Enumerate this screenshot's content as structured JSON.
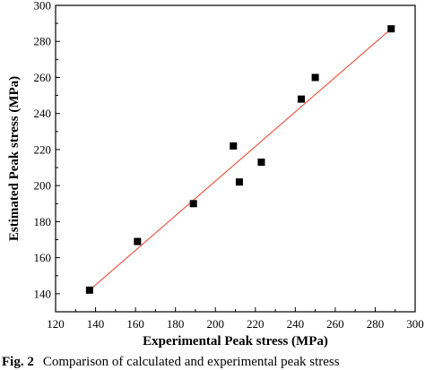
{
  "chart_data": {
    "type": "scatter",
    "xlabel": "Experimental Peak stress (MPa)",
    "ylabel": "Estimated Peak stress (MPa)",
    "xlim": [
      120,
      300
    ],
    "ylim": [
      130,
      300
    ],
    "xticks": [
      120,
      140,
      160,
      180,
      200,
      220,
      240,
      260,
      280,
      300
    ],
    "yticks": [
      140,
      160,
      180,
      200,
      220,
      240,
      260,
      280,
      300
    ],
    "grid": false,
    "series": [
      {
        "marker": "square",
        "color": "#000000",
        "x": [
          137,
          161,
          189,
          209,
          212,
          223,
          243,
          250,
          288
        ],
        "y": [
          142,
          169,
          190,
          222,
          202,
          213,
          248,
          260,
          287
        ]
      }
    ],
    "fit_line": {
      "color": "#e8402a",
      "x": [
        137,
        288
      ],
      "y": [
        142,
        287
      ]
    }
  },
  "caption": {
    "label": "Fig. 2",
    "text": "Comparison of calculated and experimental peak stress"
  }
}
